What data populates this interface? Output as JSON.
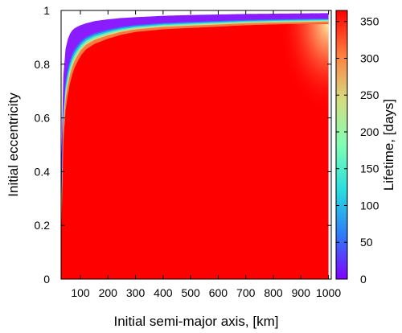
{
  "chart_data": {
    "type": "heatmap",
    "xlabel": "Initial semi-major axis, [km]",
    "ylabel": "Initial eccentricity",
    "colorbar_label": "Lifetime, [days]",
    "xlim": [
      30,
      1010
    ],
    "ylim": [
      0,
      1
    ],
    "clim": [
      0,
      365
    ],
    "x_ticks": [
      100,
      200,
      300,
      400,
      500,
      600,
      700,
      800,
      900,
      1000
    ],
    "y_ticks": [
      0,
      0.2,
      0.4,
      0.6,
      0.8,
      1
    ],
    "colorbar_ticks": [
      0,
      50,
      100,
      150,
      200,
      250,
      300,
      350
    ],
    "colormap": "rainbow",
    "colormap_stops": [
      "#8000ff",
      "#2c7ef7",
      "#2adddd",
      "#80ffb4",
      "#d4dd80",
      "#ff8040",
      "#ff0000"
    ],
    "background_color": "#ffffff",
    "grid": false,
    "data_range_x": [
      30,
      1000
    ],
    "max_lifetime_days": 365,
    "boundary": {
      "description": "cells with lifetime below 365 days lie near the upper eccentricity edge",
      "a_km": [
        30,
        35,
        40,
        45,
        50,
        60,
        70,
        80,
        100,
        120,
        150,
        200,
        250,
        300,
        400,
        500,
        600,
        700,
        800,
        900,
        1000
      ],
      "e_max": [
        0.4,
        0.7,
        0.79,
        0.85,
        0.88,
        0.91,
        0.925,
        0.935,
        0.945,
        0.952,
        0.96,
        0.967,
        0.972,
        0.975,
        0.98,
        0.983,
        0.985,
        0.987,
        0.988,
        0.989,
        0.99
      ],
      "e_full_lifetime": [
        0.13,
        0.45,
        0.55,
        0.62,
        0.66,
        0.72,
        0.76,
        0.79,
        0.83,
        0.855,
        0.875,
        0.895,
        0.91,
        0.92,
        0.93,
        0.935,
        0.94,
        0.945,
        0.948,
        0.95,
        0.952
      ]
    }
  }
}
